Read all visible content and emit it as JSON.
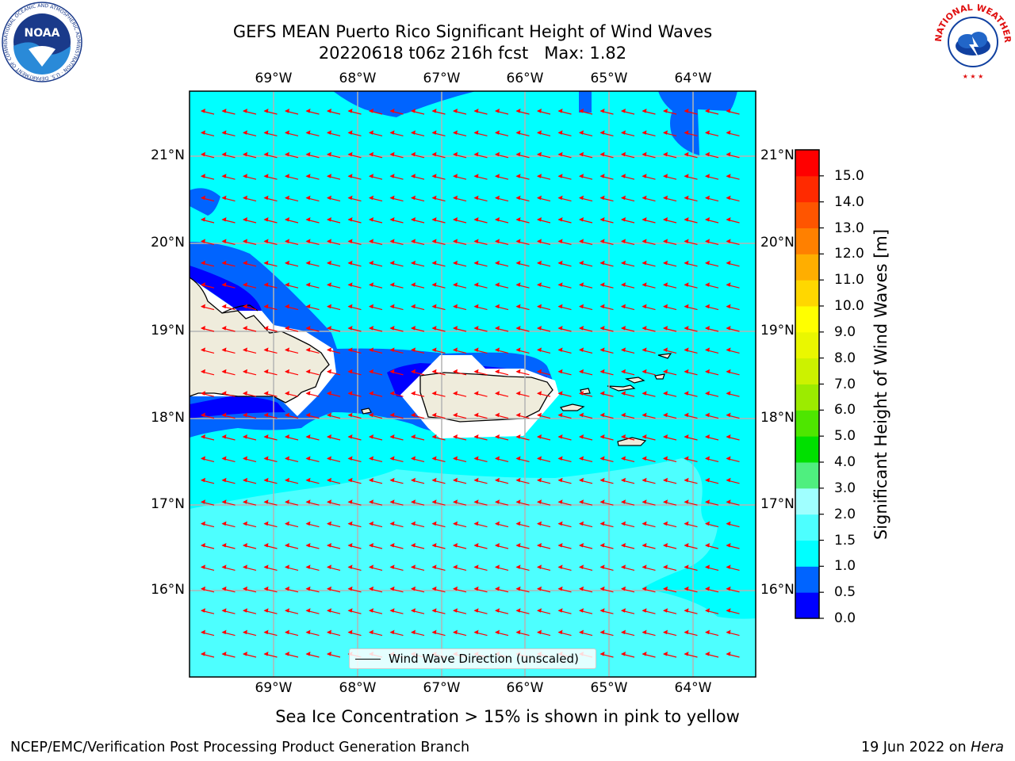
{
  "header": {
    "title_line1": "GEFS MEAN Puerto Rico Significant Height of Wind Waves",
    "title_line2": "20220618 t06z 216h fcst   Max: 1.82"
  },
  "logos": {
    "noaa": {
      "text": "NOAA",
      "ring_text": "NATIONAL OCEANIC AND ATMOSPHERIC ADMINISTRATION · U.S. DEPARTMENT OF COMMERCE"
    },
    "nws": {
      "ring_text": "NATIONAL WEATHER SERVICE"
    }
  },
  "map": {
    "lon_labels": [
      "69°W",
      "68°W",
      "67°W",
      "66°W",
      "65°W",
      "64°W"
    ],
    "lat_labels": [
      "21°N",
      "20°N",
      "19°N",
      "18°N",
      "17°N",
      "16°N"
    ],
    "legend_text": "Wind Wave Direction (unscaled)",
    "arrow_color": "#ff0000",
    "land_color": "#efecdc",
    "wave_direction": "toward west (easterly waves)"
  },
  "colorbar": {
    "label": "Significant Height of Wind Waves [m]",
    "ticks": [
      "0.0",
      "0.5",
      "1.0",
      "1.5",
      "2.0",
      "3.0",
      "4.0",
      "5.0",
      "6.0",
      "7.0",
      "8.0",
      "9.0",
      "10.0",
      "11.0",
      "12.0",
      "13.0",
      "14.0",
      "15.0"
    ],
    "colors": [
      "#0000ff",
      "#0064ff",
      "#00ffff",
      "#4dffff",
      "#a0ffff",
      "#4fef7f",
      "#00e000",
      "#4ee600",
      "#9ceb00",
      "#ccf200",
      "#eaf700",
      "#ffff00",
      "#ffd700",
      "#ffae00",
      "#ff8000",
      "#ff5500",
      "#ff2a00",
      "#ff0000"
    ]
  },
  "notes": {
    "sea_ice": "Sea Ice Concentration > 15% is shown in pink to yellow"
  },
  "footer": {
    "left": "NCEP/EMC/Verification Post Processing Product Generation Branch",
    "date": "19 Jun 2022 on ",
    "machine": "Hera"
  }
}
